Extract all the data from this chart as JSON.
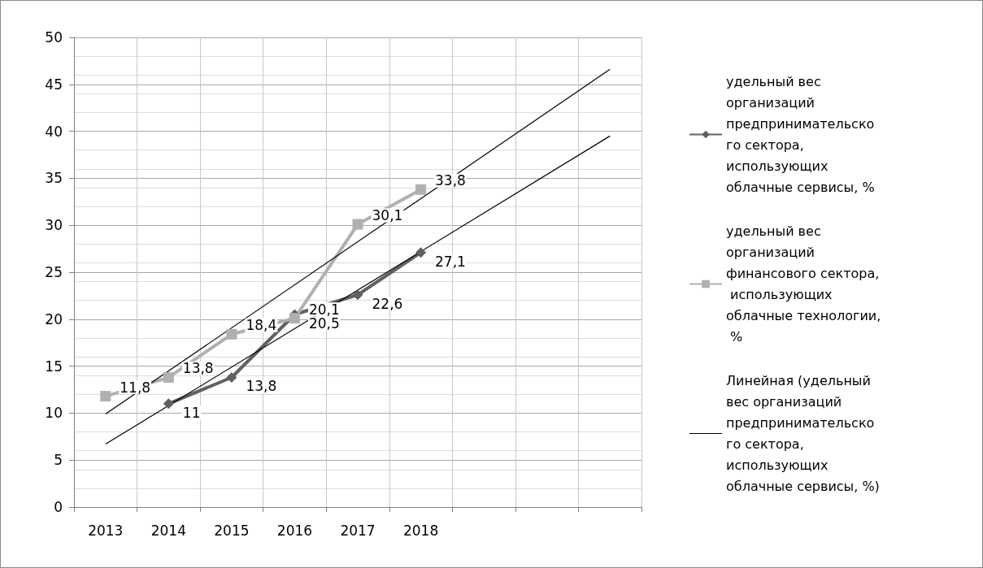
{
  "chart_data": {
    "type": "line",
    "categories": [
      "2013",
      "2014",
      "2015",
      "2016",
      "2017",
      "2018",
      null,
      null,
      null
    ],
    "series": [
      {
        "name": "удельный вес организаций предпринимательского сектора, использующих облачные сервисы, %",
        "color": "#606060",
        "marker": "diamond",
        "values": [
          null,
          11,
          13.8,
          20.5,
          22.6,
          27.1,
          null,
          null,
          null
        ],
        "value_labels": [
          null,
          "11",
          "13,8",
          "20,5",
          "22,6",
          "27,1",
          null,
          null,
          null
        ]
      },
      {
        "name": "удельный вес организаций финансового сектора, использующих облачные технологии, %",
        "color": "#b0b0b0",
        "marker": "square",
        "values": [
          11.8,
          13.8,
          18.4,
          20.1,
          30.1,
          33.8,
          null,
          null,
          null
        ],
        "value_labels": [
          "11,8",
          "13,8",
          "18,4",
          "20,1",
          "30,1",
          "33,8",
          null,
          null,
          null
        ]
      },
      {
        "name": "Линейная (удельный вес организаций предпринимательского сектора, использующих облачные сервисы, %)",
        "color": "#000000",
        "marker": "none",
        "values": [
          6.7,
          null,
          null,
          null,
          null,
          null,
          null,
          null,
          39.5
        ]
      },
      {
        "color": "#000000",
        "marker": "none",
        "values": [
          9.9,
          null,
          null,
          null,
          null,
          null,
          null,
          null,
          46.6
        ]
      }
    ],
    "ylim": [
      0,
      50
    ],
    "yticks": [
      0,
      5,
      10,
      15,
      20,
      25,
      30,
      35,
      40,
      45,
      50
    ],
    "grid": true,
    "legend": "right"
  }
}
